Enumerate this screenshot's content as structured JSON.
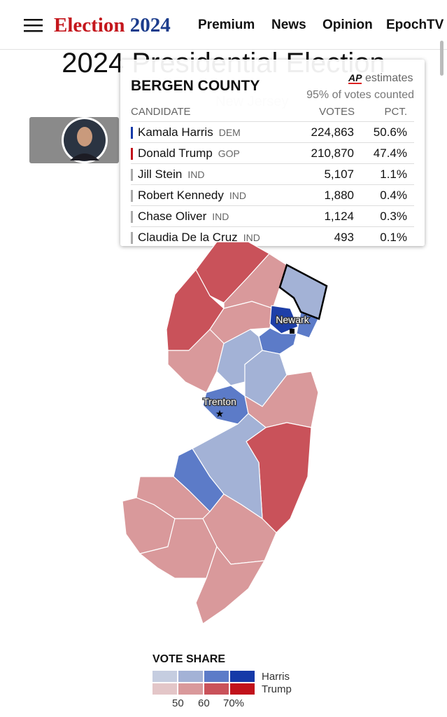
{
  "header": {
    "logo_election": "Election",
    "logo_year": "2024",
    "nav": [
      "Premium",
      "News",
      "Opinion",
      "EpochTV"
    ]
  },
  "title": "2024 Presidential Election",
  "state": "New Jersey",
  "tooltip": {
    "county": "BERGEN COUNTY",
    "source": "AP",
    "source_note": "estimates",
    "reporting": "95% of votes counted",
    "columns": [
      "CANDIDATE",
      "VOTES",
      "PCT."
    ],
    "rows": [
      {
        "name": "Kamala Harris",
        "party": "DEM",
        "votes": "224,863",
        "pct": "50.6%"
      },
      {
        "name": "Donald Trump",
        "party": "GOP",
        "votes": "210,870",
        "pct": "47.4%"
      },
      {
        "name": "Jill Stein",
        "party": "IND",
        "votes": "5,107",
        "pct": "1.1%"
      },
      {
        "name": "Robert Kennedy",
        "party": "IND",
        "votes": "1,880",
        "pct": "0.4%"
      },
      {
        "name": "Chase Oliver",
        "party": "IND",
        "votes": "1,124",
        "pct": "0.3%"
      },
      {
        "name": "Claudia De la Cruz",
        "party": "IND",
        "votes": "493",
        "pct": "0.1%"
      }
    ]
  },
  "map": {
    "cities": [
      "Newark",
      "Trenton"
    ]
  },
  "legend": {
    "title": "VOTE SHARE",
    "harris": "Harris",
    "trump": "Trump",
    "scale": [
      "50",
      "60",
      "70%"
    ]
  }
}
